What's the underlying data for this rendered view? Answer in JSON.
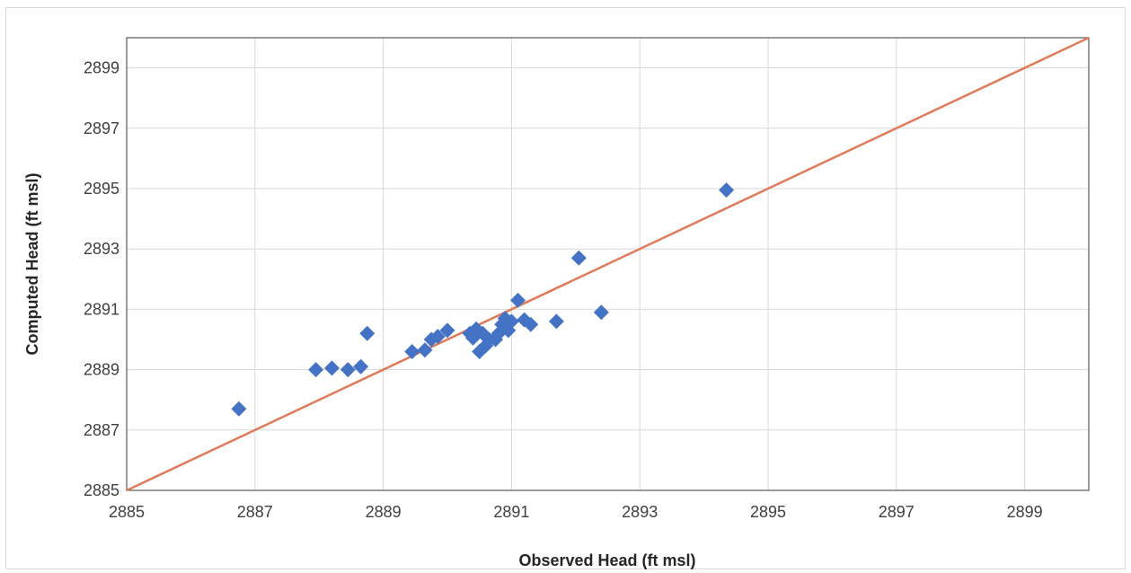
{
  "chart_data": {
    "type": "scatter",
    "title": "",
    "xlabel": "Observed Head (ft msl)",
    "ylabel": "Computed Head (ft msl)",
    "xlim": [
      2885,
      2900
    ],
    "ylim": [
      2885,
      2900
    ],
    "x_ticks": [
      "2885",
      "2887",
      "2889",
      "2891",
      "2893",
      "2895",
      "2897",
      "2899"
    ],
    "y_ticks": [
      "2885",
      "2887",
      "2889",
      "2891",
      "2893",
      "2895",
      "2897",
      "2899"
    ],
    "grid": true,
    "legend": "none",
    "marker_color": "#4472c4",
    "line_color": "#e07b5a",
    "reference_line": {
      "from": [
        2885,
        2885
      ],
      "to": [
        2900,
        2900
      ]
    },
    "series": [
      {
        "points": [
          [
            2886.75,
            2887.7
          ],
          [
            2887.95,
            2889.0
          ],
          [
            2888.2,
            2889.05
          ],
          [
            2888.45,
            2889.0
          ],
          [
            2888.65,
            2889.1
          ],
          [
            2888.75,
            2890.2
          ],
          [
            2889.45,
            2889.6
          ],
          [
            2889.65,
            2889.65
          ],
          [
            2889.75,
            2890.0
          ],
          [
            2889.85,
            2890.1
          ],
          [
            2890.0,
            2890.3
          ],
          [
            2890.35,
            2890.2
          ],
          [
            2890.45,
            2890.35
          ],
          [
            2890.4,
            2890.05
          ],
          [
            2890.55,
            2890.2
          ],
          [
            2890.5,
            2889.6
          ],
          [
            2890.6,
            2889.8
          ],
          [
            2890.65,
            2890.0
          ],
          [
            2890.75,
            2890.0
          ],
          [
            2890.8,
            2890.2
          ],
          [
            2890.85,
            2890.5
          ],
          [
            2890.9,
            2890.7
          ],
          [
            2890.95,
            2890.3
          ],
          [
            2891.0,
            2890.6
          ],
          [
            2891.1,
            2891.3
          ],
          [
            2891.2,
            2890.65
          ],
          [
            2891.3,
            2890.5
          ],
          [
            2891.7,
            2890.6
          ],
          [
            2892.05,
            2892.7
          ],
          [
            2892.4,
            2890.9
          ],
          [
            2894.35,
            2894.95
          ]
        ]
      }
    ]
  }
}
